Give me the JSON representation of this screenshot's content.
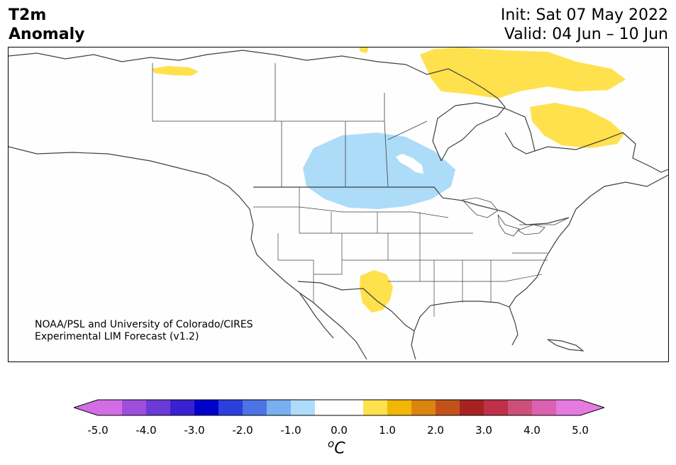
{
  "title": {
    "line1": "T2m",
    "line2": "Anomaly"
  },
  "dates": {
    "init": "Init: Sat 07 May 2022",
    "valid": "Valid: 04 Jun – 10 Jun"
  },
  "credit": {
    "line1": "NOAA/PSL and University of Colorado/CIRES",
    "line2": "Experimental LIM Forecast (v1.2)"
  },
  "colorbar": {
    "ticks": [
      "-5.0",
      "-4.0",
      "-3.0",
      "-2.0",
      "-1.0",
      "0.0",
      "1.0",
      "2.0",
      "3.0",
      "4.0",
      "5.0"
    ],
    "unit_prefix": "o",
    "unit": "C",
    "colors": [
      "#d36de6",
      "#9d4fdc",
      "#6a3ad8",
      "#3a20d2",
      "#0000cc",
      "#2b3fdf",
      "#4e73e6",
      "#78aff0",
      "#addcf9",
      "#ffffff",
      "#ffffff",
      "#ffe14d",
      "#f2b705",
      "#dc8410",
      "#c2521a",
      "#a62321",
      "#be3148",
      "#cf4f7b",
      "#dc61b1",
      "#e67ae1"
    ],
    "under_color": "#d36de6",
    "over_color": "#e67ae1"
  },
  "anomaly_colors": {
    "warm": "#ffe14d",
    "cool": "#addcf9"
  }
}
